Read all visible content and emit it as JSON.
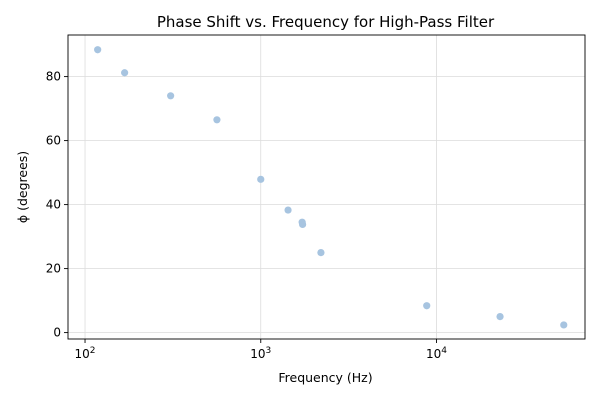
{
  "chart_data": {
    "type": "scatter",
    "title": "Phase Shift vs. Frequency for High-Pass Filter",
    "xlabel": "Frequency (Hz)",
    "ylabel": "ϕ (degrees)",
    "xscale": "log",
    "xlim": [
      80,
      70000
    ],
    "ylim": [
      -2,
      93
    ],
    "x_ticks": [
      {
        "value": 100,
        "base": "10",
        "exp": "2"
      },
      {
        "value": 1000,
        "base": "10",
        "exp": "3"
      },
      {
        "value": 10000,
        "base": "10",
        "exp": "4"
      }
    ],
    "y_ticks": [
      0,
      20,
      40,
      60,
      80
    ],
    "grid": true,
    "marker_color": "#a7c4e0",
    "points": [
      {
        "x": 118,
        "y": 88.4
      },
      {
        "x": 168,
        "y": 81.2
      },
      {
        "x": 307,
        "y": 74.0
      },
      {
        "x": 563,
        "y": 66.5
      },
      {
        "x": 1000,
        "y": 47.9
      },
      {
        "x": 1430,
        "y": 38.3
      },
      {
        "x": 1720,
        "y": 34.5
      },
      {
        "x": 1730,
        "y": 33.8
      },
      {
        "x": 2200,
        "y": 25.0
      },
      {
        "x": 8800,
        "y": 8.4
      },
      {
        "x": 23000,
        "y": 5.0
      },
      {
        "x": 53000,
        "y": 2.4
      }
    ]
  }
}
